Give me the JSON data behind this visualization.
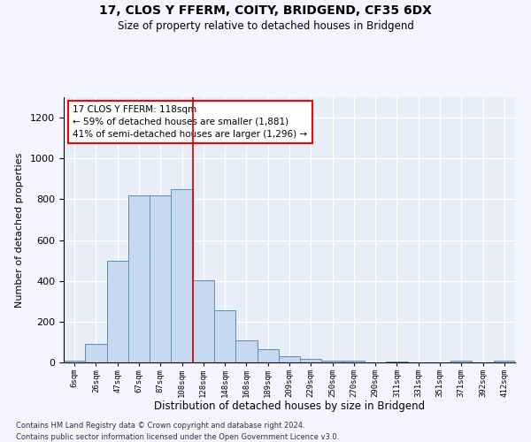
{
  "title1": "17, CLOS Y FFERM, COITY, BRIDGEND, CF35 6DX",
  "title2": "Size of property relative to detached houses in Bridgend",
  "xlabel": "Distribution of detached houses by size in Bridgend",
  "ylabel": "Number of detached properties",
  "bar_color": "#c5d8f0",
  "bar_edge_color": "#5b8db8",
  "background_color": "#e8eef8",
  "grid_color": "#ffffff",
  "categories": [
    "6sqm",
    "26sqm",
    "47sqm",
    "67sqm",
    "87sqm",
    "108sqm",
    "128sqm",
    "148sqm",
    "168sqm",
    "189sqm",
    "209sqm",
    "229sqm",
    "250sqm",
    "270sqm",
    "290sqm",
    "311sqm",
    "331sqm",
    "351sqm",
    "371sqm",
    "392sqm",
    "412sqm"
  ],
  "values": [
    10,
    90,
    500,
    820,
    820,
    850,
    405,
    255,
    110,
    65,
    30,
    18,
    10,
    10,
    0,
    5,
    0,
    0,
    10,
    0,
    10
  ],
  "ylim": [
    0,
    1300
  ],
  "yticks": [
    0,
    200,
    400,
    600,
    800,
    1000,
    1200
  ],
  "vline_color": "#cc0000",
  "vline_index": 5.5,
  "annotation_line1": "17 CLOS Y FFERM: 118sqm",
  "annotation_line2": "← 59% of detached houses are smaller (1,881)",
  "annotation_line3": "41% of semi-detached houses are larger (1,296) →",
  "footer_line1": "Contains HM Land Registry data © Crown copyright and database right 2024.",
  "footer_line2": "Contains public sector information licensed under the Open Government Licence v3.0."
}
